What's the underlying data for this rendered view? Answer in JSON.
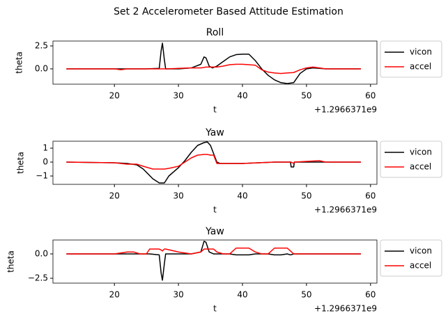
{
  "title": "Set 2 Accelerometer Based Attitude Estimation",
  "chart_data": [
    {
      "type": "line",
      "title": "Roll",
      "xlabel": "t",
      "ylabel": "theta",
      "x_offset_label": "+1.2966371e9",
      "xlim": [
        10.4,
        61.0
      ],
      "xticks": [
        20,
        30,
        40,
        50,
        60
      ],
      "ylim": [
        -1.67,
        3.03
      ],
      "yticks": [
        {
          "value": 0,
          "label": "0.0"
        },
        2.5
      ],
      "legend": "outside right",
      "x": [
        12.5,
        20,
        21,
        22,
        25,
        27,
        27.3,
        27.5,
        27.8,
        28,
        30,
        32,
        33.5,
        34,
        34.3,
        34.8,
        35.3,
        36,
        37,
        38,
        39,
        40,
        41,
        42,
        43,
        44,
        45,
        46,
        47,
        48,
        49,
        50,
        51,
        52,
        53,
        58.5
      ],
      "series": [
        {
          "name": "vicon",
          "color": "#000000",
          "values": [
            0,
            0,
            0,
            0,
            0,
            0.05,
            2.0,
            2.8,
            1.0,
            0,
            0,
            0.1,
            0.5,
            1.3,
            1.2,
            0.3,
            0.1,
            0.3,
            0.8,
            1.3,
            1.55,
            1.6,
            1.6,
            0.9,
            0,
            -0.7,
            -1.2,
            -1.5,
            -1.6,
            -1.5,
            -0.5,
            0,
            0.1,
            0.05,
            0,
            0
          ]
        },
        {
          "name": "accel",
          "color": "#ff0000",
          "values": [
            0,
            0,
            -0.1,
            0,
            0,
            0,
            0,
            0,
            0,
            0,
            0.05,
            0.1,
            0.1,
            0.15,
            0.2,
            0.2,
            0.2,
            0.2,
            0.3,
            0.45,
            0.5,
            0.5,
            0.45,
            0.4,
            -0.1,
            -0.35,
            -0.45,
            -0.5,
            -0.45,
            -0.4,
            -0.1,
            0.1,
            0.2,
            0.1,
            0,
            0
          ]
        }
      ]
    },
    {
      "type": "line",
      "title": "Yaw",
      "xlabel": "t",
      "ylabel": "theta",
      "x_offset_label": "+1.2966371e9",
      "xlim": [
        10.4,
        61.0
      ],
      "xticks": [
        20,
        30,
        40,
        50,
        60
      ],
      "ylim": [
        -1.6,
        1.5
      ],
      "yticks": [
        1,
        0,
        {
          "value": -1,
          "label": "−1"
        }
      ],
      "legend": "outside right",
      "x": [
        12.5,
        20,
        22,
        23.5,
        24.5,
        26,
        27,
        27.8,
        28.5,
        30,
        31,
        32,
        33,
        34,
        34.5,
        35,
        35.5,
        36,
        36.5,
        40,
        45,
        47.5,
        47.6,
        48,
        48.1,
        50,
        52,
        53,
        58.5
      ],
      "series": [
        {
          "name": "vicon",
          "color": "#000000",
          "values": [
            0,
            -0.05,
            -0.1,
            -0.2,
            -0.5,
            -1.2,
            -1.5,
            -1.5,
            -1.0,
            -0.4,
            0.1,
            0.7,
            1.2,
            1.4,
            1.45,
            1.2,
            0.6,
            0,
            -0.1,
            -0.1,
            0,
            0,
            -0.35,
            -0.35,
            0,
            0,
            0,
            0,
            0
          ]
        },
        {
          "name": "accel",
          "color": "#ff0000",
          "values": [
            0,
            -0.05,
            -0.15,
            -0.15,
            -0.3,
            -0.5,
            -0.5,
            -0.5,
            -0.45,
            -0.3,
            0,
            0.3,
            0.5,
            0.55,
            0.55,
            0.5,
            0.5,
            -0.1,
            -0.1,
            -0.1,
            0,
            0,
            0,
            -0.1,
            0,
            0.05,
            0.1,
            0,
            0
          ]
        }
      ]
    },
    {
      "type": "line",
      "title": "Yaw",
      "xlabel": "t",
      "ylabel": "theta",
      "x_offset_label": "+1.2966371e9",
      "xlim": [
        10.4,
        61.0
      ],
      "xticks": [
        20,
        30,
        40,
        50,
        60
      ],
      "ylim": [
        -3.0,
        1.43
      ],
      "yticks": [
        {
          "value": 0,
          "label": "0.0"
        },
        {
          "value": -2.5,
          "label": "−2.5"
        }
      ],
      "legend": "outside right",
      "x": [
        12.5,
        20,
        22,
        23,
        24,
        25,
        25.5,
        27,
        27.3,
        27.5,
        27.8,
        28,
        30,
        32,
        33.5,
        34,
        34.3,
        34.8,
        35.5,
        36,
        37,
        38,
        39,
        41,
        42,
        43,
        44,
        45,
        46,
        47,
        47.5,
        48,
        50,
        53,
        58.5
      ],
      "series": [
        {
          "name": "vicon",
          "color": "#000000",
          "values": [
            0,
            0,
            0,
            0,
            0,
            0,
            0,
            -0.1,
            -2.0,
            -2.7,
            -1.0,
            0,
            0,
            0,
            0.2,
            1.3,
            1.2,
            0.2,
            0,
            0,
            0,
            0,
            -0.1,
            -0.1,
            0,
            0,
            0,
            -0.1,
            -0.1,
            0,
            -0.1,
            0,
            0,
            0,
            0
          ]
        },
        {
          "name": "accel",
          "color": "#ff0000",
          "values": [
            0,
            0,
            0.2,
            0.2,
            0,
            0,
            0.5,
            0.5,
            0.4,
            0.3,
            0.5,
            0.5,
            0.2,
            0,
            0.2,
            0.5,
            0.5,
            0.5,
            0.5,
            0.2,
            0,
            0,
            0.6,
            0.6,
            0.2,
            0,
            0,
            0.6,
            0.6,
            0.6,
            0.3,
            0,
            0,
            0,
            0
          ]
        }
      ]
    }
  ]
}
